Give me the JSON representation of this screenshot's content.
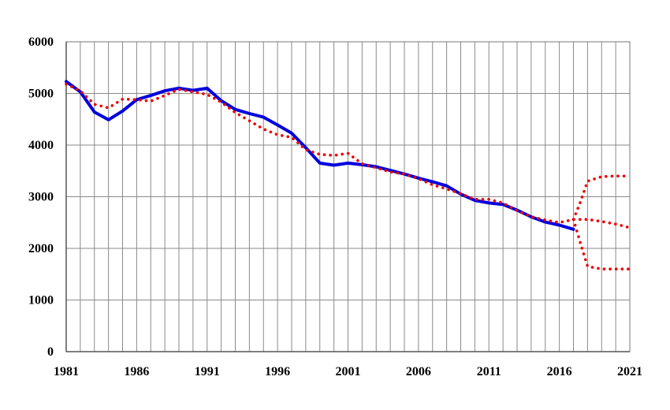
{
  "chart_data": {
    "type": "line",
    "title": "",
    "xlabel": "",
    "ylabel": "",
    "xlim": [
      1981,
      2021
    ],
    "ylim": [
      0,
      6000
    ],
    "grid": true,
    "legend": "none",
    "x_ticks": [
      "1981",
      "1986",
      "1991",
      "1996",
      "2001",
      "2006",
      "2011",
      "2016",
      "2021"
    ],
    "y_ticks": [
      "0",
      "1000",
      "2000",
      "3000",
      "4000",
      "5000",
      "6000"
    ],
    "series": [
      {
        "style": "solid",
        "color": "#0000dd",
        "points": [
          [
            1981,
            5230
          ],
          [
            1982,
            5030
          ],
          [
            1983,
            4640
          ],
          [
            1984,
            4490
          ],
          [
            1985,
            4660
          ],
          [
            1986,
            4880
          ],
          [
            1987,
            4960
          ],
          [
            1988,
            5050
          ],
          [
            1989,
            5100
          ],
          [
            1990,
            5060
          ],
          [
            1991,
            5100
          ],
          [
            1992,
            4860
          ],
          [
            1993,
            4690
          ],
          [
            1994,
            4610
          ],
          [
            1995,
            4540
          ],
          [
            1996,
            4390
          ],
          [
            1997,
            4230
          ],
          [
            1998,
            3950
          ],
          [
            1999,
            3650
          ],
          [
            2000,
            3610
          ],
          [
            2001,
            3650
          ],
          [
            2002,
            3620
          ],
          [
            2003,
            3580
          ],
          [
            2004,
            3510
          ],
          [
            2005,
            3440
          ],
          [
            2006,
            3360
          ],
          [
            2007,
            3290
          ],
          [
            2008,
            3210
          ],
          [
            2009,
            3050
          ],
          [
            2010,
            2930
          ],
          [
            2011,
            2880
          ],
          [
            2012,
            2850
          ],
          [
            2013,
            2740
          ],
          [
            2014,
            2610
          ],
          [
            2015,
            2510
          ],
          [
            2016,
            2450
          ],
          [
            2017,
            2370
          ]
        ]
      },
      {
        "style": "dotted",
        "color": "#ee0000",
        "points": [
          [
            1981,
            5180
          ],
          [
            1982,
            5050
          ],
          [
            1983,
            4790
          ],
          [
            1984,
            4720
          ],
          [
            1985,
            4890
          ],
          [
            1986,
            4880
          ],
          [
            1987,
            4850
          ],
          [
            1988,
            4960
          ],
          [
            1989,
            5080
          ],
          [
            1990,
            5030
          ],
          [
            1991,
            4980
          ],
          [
            1992,
            4830
          ],
          [
            1993,
            4630
          ],
          [
            1994,
            4470
          ],
          [
            1995,
            4310
          ],
          [
            1996,
            4200
          ],
          [
            1997,
            4150
          ],
          [
            1998,
            3910
          ],
          [
            1999,
            3820
          ],
          [
            2000,
            3800
          ],
          [
            2001,
            3840
          ],
          [
            2002,
            3640
          ],
          [
            2003,
            3560
          ],
          [
            2004,
            3480
          ],
          [
            2005,
            3440
          ],
          [
            2006,
            3350
          ],
          [
            2007,
            3230
          ],
          [
            2008,
            3150
          ],
          [
            2009,
            3060
          ],
          [
            2010,
            2950
          ],
          [
            2011,
            2950
          ],
          [
            2012,
            2880
          ],
          [
            2013,
            2730
          ],
          [
            2014,
            2610
          ],
          [
            2015,
            2550
          ],
          [
            2016,
            2500
          ],
          [
            2017,
            2560
          ],
          [
            2018,
            2560
          ],
          [
            2019,
            2520
          ],
          [
            2020,
            2470
          ],
          [
            2021,
            2400
          ]
        ]
      },
      {
        "style": "dotted",
        "color": "#ee0000",
        "points": [
          [
            2017,
            2560
          ],
          [
            2017.5,
            2900
          ],
          [
            2018,
            3300
          ],
          [
            2019,
            3390
          ],
          [
            2020,
            3400
          ],
          [
            2021,
            3400
          ]
        ]
      },
      {
        "style": "dotted",
        "color": "#ee0000",
        "points": [
          [
            2017,
            2560
          ],
          [
            2017.5,
            2100
          ],
          [
            2018,
            1650
          ],
          [
            2019,
            1600
          ],
          [
            2020,
            1600
          ],
          [
            2021,
            1600
          ]
        ]
      }
    ]
  }
}
